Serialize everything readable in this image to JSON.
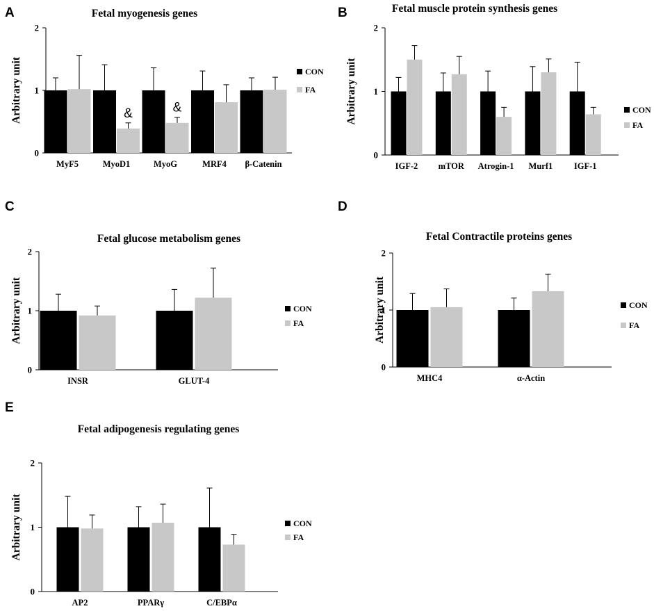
{
  "colors": {
    "con": "#000000",
    "fa": "#c8c8c8",
    "axis": "#000000"
  },
  "chart_data": [
    {
      "panel": "A",
      "type": "bar",
      "title": "Fetal myogenesis genes",
      "ylabel": "Arbitrary unit",
      "ylim": [
        0,
        2
      ],
      "yticks": [
        "0",
        "1",
        "2"
      ],
      "legend_position": "right",
      "categories": [
        "MyF5",
        "MyoD1",
        "MyoG",
        "MRF4",
        "β-Catenin"
      ],
      "series": [
        {
          "name": "CON",
          "values": [
            1.0,
            1.0,
            1.0,
            1.0,
            1.0
          ],
          "errors": [
            0.2,
            0.41,
            0.36,
            0.31,
            0.2
          ]
        },
        {
          "name": "FA",
          "values": [
            1.02,
            0.39,
            0.48,
            0.81,
            1.01
          ],
          "errors": [
            0.54,
            0.09,
            0.09,
            0.28,
            0.2
          ]
        }
      ],
      "annotations": [
        {
          "category": 1,
          "text": "&"
        },
        {
          "category": 2,
          "text": "&"
        }
      ]
    },
    {
      "panel": "B",
      "type": "bar",
      "title": "Fetal muscle protein synthesis genes",
      "ylabel": "Arbitrary unit",
      "ylim": [
        0,
        2
      ],
      "yticks": [
        "0",
        "1",
        "2"
      ],
      "legend_position": "right",
      "categories": [
        "IGF-2",
        "mTOR",
        "Atrogin-1",
        "Murf1",
        "IGF-1"
      ],
      "series": [
        {
          "name": "CON",
          "values": [
            1.0,
            1.0,
            1.0,
            1.0,
            1.0
          ],
          "errors": [
            0.22,
            0.29,
            0.32,
            0.39,
            0.46
          ]
        },
        {
          "name": "FA",
          "values": [
            1.5,
            1.27,
            0.6,
            1.3,
            0.64
          ],
          "errors": [
            0.22,
            0.28,
            0.15,
            0.21,
            0.11
          ]
        }
      ],
      "annotations": []
    },
    {
      "panel": "C",
      "type": "bar",
      "title": "Fetal  glucose metabolism genes",
      "ylabel": "Arbitrary unit",
      "ylim": [
        0,
        2
      ],
      "yticks": [
        "0",
        "1",
        "2"
      ],
      "legend_position": "right",
      "categories": [
        "INSR",
        "GLUT-4"
      ],
      "series": [
        {
          "name": "CON",
          "values": [
            1.0,
            1.0
          ],
          "errors": [
            0.28,
            0.36
          ]
        },
        {
          "name": "FA",
          "values": [
            0.92,
            1.22
          ],
          "errors": [
            0.16,
            0.5
          ]
        }
      ],
      "annotations": []
    },
    {
      "panel": "D",
      "type": "bar",
      "title": "Fetal Contractile proteins genes",
      "ylabel": "Arbitrary unit",
      "ylim": [
        0,
        2
      ],
      "yticks": [
        "0",
        "1",
        "2"
      ],
      "legend_position": "right",
      "categories": [
        "MHC4",
        "α-Actin"
      ],
      "series": [
        {
          "name": "CON",
          "values": [
            1.0,
            1.0
          ],
          "errors": [
            0.29,
            0.21
          ]
        },
        {
          "name": "FA",
          "values": [
            1.05,
            1.33
          ],
          "errors": [
            0.32,
            0.3
          ]
        }
      ],
      "annotations": []
    },
    {
      "panel": "E",
      "type": "bar",
      "title": "Fetal adipogenesis regulating genes",
      "ylabel": "Arbitrary unit",
      "ylim": [
        0,
        2
      ],
      "yticks": [
        "0",
        "1",
        "2"
      ],
      "legend_position": "right",
      "categories": [
        "AP2",
        "PPARγ",
        "C/EBPα"
      ],
      "series": [
        {
          "name": "CON",
          "values": [
            1.0,
            1.0,
            1.0
          ],
          "errors": [
            0.48,
            0.32,
            0.61
          ]
        },
        {
          "name": "FA",
          "values": [
            0.98,
            1.07,
            0.73
          ],
          "errors": [
            0.21,
            0.29,
            0.16
          ]
        }
      ],
      "annotations": []
    }
  ]
}
